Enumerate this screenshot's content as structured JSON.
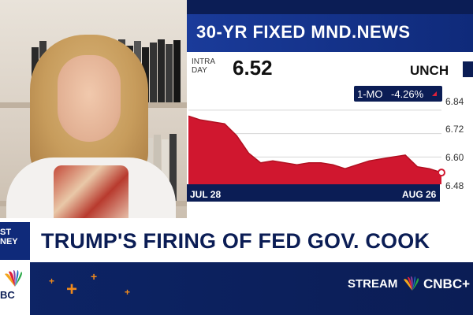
{
  "chart": {
    "title": "30-YR FIXED MND.NEWS",
    "intraday_label": "INTRA DAY",
    "price": "6.52",
    "change_label": "UNCH",
    "period_label": "1-MO",
    "period_change": "-4.26%",
    "y_ticks": [
      "6.84",
      "6.72",
      "6.60",
      "6.48"
    ],
    "x_ticks": [
      "JUL 28",
      "AUG 26"
    ]
  },
  "chart_data": {
    "type": "area",
    "title": "30-YR FIXED MND.NEWS",
    "xlabel": "",
    "ylabel": "",
    "x": [
      "JUL 28",
      "",
      "",
      "",
      "",
      "",
      "",
      "",
      "",
      "",
      "",
      "",
      "",
      "",
      "",
      "",
      "",
      "",
      "",
      "",
      "",
      "AUG 26"
    ],
    "values": [
      6.81,
      6.79,
      6.78,
      6.77,
      6.71,
      6.62,
      6.57,
      6.58,
      6.57,
      6.56,
      6.57,
      6.57,
      6.56,
      6.54,
      6.56,
      6.58,
      6.59,
      6.6,
      6.61,
      6.55,
      6.54,
      6.52
    ],
    "ylim": [
      6.46,
      6.88
    ],
    "y_ticks": [
      6.48,
      6.6,
      6.72,
      6.84
    ],
    "grid": true,
    "colors": {
      "fill": "#d0172f",
      "line": "#b01020",
      "marker": "#d0172f"
    }
  },
  "lower_third": {
    "brand_tab": "ST NEY",
    "headline": "TRUMP'S FIRING OF FED GOV. COOK",
    "logo_text": "BC",
    "stream_label": "STREAM",
    "network": "CNBC+"
  },
  "colors": {
    "navy": "#0b1d55",
    "accent_red": "#d0172f",
    "accent_orange": "#f08a1c",
    "white": "#ffffff"
  }
}
